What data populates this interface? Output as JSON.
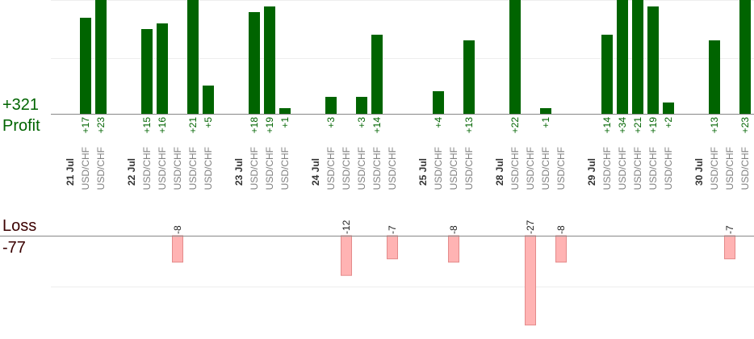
{
  "summary": {
    "profit_total": "+321",
    "profit_label": "Profit",
    "loss_label": "Loss",
    "loss_total": "-77"
  },
  "colors": {
    "profit_bar": "#006400",
    "profit_text": "#006400",
    "loss_bar": "#ffb3b3",
    "loss_bar_border": "#e48a8a",
    "loss_text": "#3b0000",
    "date_text": "#333333",
    "pair_text": "#808080",
    "axis": "#888888",
    "grid": "#eeeeee"
  },
  "chart_data": {
    "type": "bar",
    "title": "",
    "profit_scale_max": 20,
    "loss_scale_min": -20,
    "grid": true,
    "date_labels": [
      "21 Jul",
      "22 Jul",
      "23 Jul",
      "24 Jul",
      "25 Jul",
      "28 Jul",
      "29 Jul",
      "30 Jul"
    ],
    "date_slots": [
      0,
      4,
      11,
      16,
      23,
      28,
      34,
      41
    ],
    "slots": [
      {
        "date": "21 Jul",
        "label": "21 Jul"
      },
      {
        "pair": "USD/CHF",
        "profit": 17,
        "profit_label": "+17"
      },
      {
        "pair": "USD/CHF",
        "profit": 23,
        "profit_label": "+23"
      },
      {
        "pair": "",
        "label": ""
      },
      {
        "date": "22 Jul",
        "label": "22 Jul"
      },
      {
        "pair": "USD/CHF",
        "profit": 15,
        "profit_label": "+15"
      },
      {
        "pair": "USD/CHF",
        "profit": 16,
        "profit_label": "+16"
      },
      {
        "pair": "USD/CHF",
        "loss": -8,
        "loss_label": "-8"
      },
      {
        "pair": "USD/CHF",
        "profit": 21,
        "profit_label": "+21"
      },
      {
        "pair": "USD/CHF",
        "profit": 5,
        "profit_label": "+5"
      },
      {
        "pair": "",
        "label": ""
      },
      {
        "date": "23 Jul",
        "label": "23 Jul"
      },
      {
        "pair": "USD/CHF",
        "profit": 18,
        "profit_label": "+18"
      },
      {
        "pair": "USD/CHF",
        "profit": 19,
        "profit_label": "+19"
      },
      {
        "pair": "USD/CHF",
        "profit": 1,
        "profit_label": "+1"
      },
      {
        "pair": "",
        "label": ""
      },
      {
        "date": "24 Jul",
        "label": "24 Jul"
      },
      {
        "pair": "USD/CHF",
        "profit": 3,
        "profit_label": "+3"
      },
      {
        "pair": "USD/CHF",
        "loss": -12,
        "loss_label": "-12"
      },
      {
        "pair": "USD/CHF",
        "profit": 3,
        "profit_label": "+3"
      },
      {
        "pair": "USD/CHF",
        "profit": 14,
        "profit_label": "+14"
      },
      {
        "pair": "USD/CHF",
        "loss": -7,
        "loss_label": "-7"
      },
      {
        "pair": "",
        "label": ""
      },
      {
        "date": "25 Jul",
        "label": "25 Jul"
      },
      {
        "pair": "USD/CHF",
        "profit": 4,
        "profit_label": "+4"
      },
      {
        "pair": "USD/CHF",
        "loss": -8,
        "loss_label": "-8"
      },
      {
        "pair": "USD/CHF",
        "profit": 13,
        "profit_label": "+13"
      },
      {
        "pair": "",
        "label": ""
      },
      {
        "date": "28 Jul",
        "label": "28 Jul"
      },
      {
        "pair": "USD/CHF",
        "profit": 22,
        "profit_label": "+22"
      },
      {
        "pair": "USD/CHF",
        "loss": -27,
        "loss_label": "-27"
      },
      {
        "pair": "USD/CHF",
        "profit": 1,
        "profit_label": "+1"
      },
      {
        "pair": "USD/CHF",
        "loss": -8,
        "loss_label": "-8"
      },
      {
        "pair": "",
        "label": ""
      },
      {
        "date": "29 Jul",
        "label": "29 Jul"
      },
      {
        "pair": "USD/CHF",
        "profit": 14,
        "profit_label": "+14"
      },
      {
        "pair": "USD/CHF",
        "profit": 34,
        "profit_label": "+34"
      },
      {
        "pair": "USD/CHF",
        "profit": 21,
        "profit_label": "+21"
      },
      {
        "pair": "USD/CHF",
        "profit": 19,
        "profit_label": "+19"
      },
      {
        "pair": "USD/CHF",
        "profit": 2,
        "profit_label": "+2"
      },
      {
        "pair": "",
        "label": ""
      },
      {
        "date": "30 Jul",
        "label": "30 Jul"
      },
      {
        "pair": "USD/CHF",
        "profit": 13,
        "profit_label": "+13"
      },
      {
        "pair": "USD/CHF",
        "loss": -7,
        "loss_label": "-7"
      },
      {
        "pair": "USD/CHF",
        "profit": 23,
        "profit_label": "+23"
      }
    ]
  }
}
